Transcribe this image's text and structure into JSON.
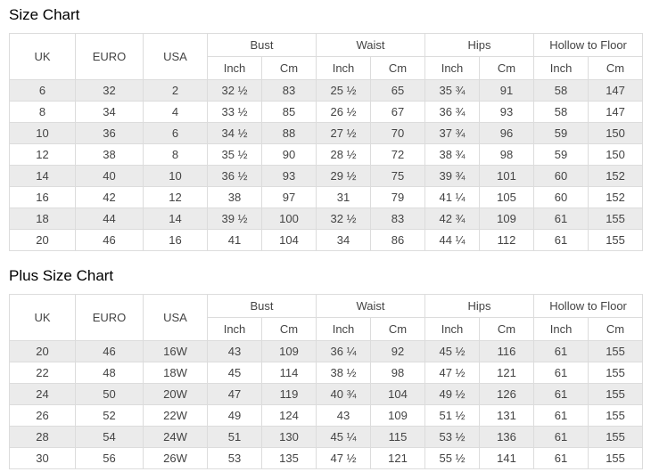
{
  "colors": {
    "stripe": "#ebebeb",
    "border": "#dcdcdc",
    "text": "#444444",
    "title": "#000000"
  },
  "tables": [
    {
      "title": "Size Chart",
      "headers": {
        "uk": "UK",
        "euro": "EURO",
        "usa": "USA"
      },
      "groups": [
        "Bust",
        "Waist",
        "Hips",
        "Hollow to Floor"
      ],
      "sub": [
        "Inch",
        "Cm"
      ],
      "rows": [
        [
          "6",
          "32",
          "2",
          "32 ½",
          "83",
          "25 ½",
          "65",
          "35 ¾",
          "91",
          "58",
          "147"
        ],
        [
          "8",
          "34",
          "4",
          "33 ½",
          "85",
          "26 ½",
          "67",
          "36 ¾",
          "93",
          "58",
          "147"
        ],
        [
          "10",
          "36",
          "6",
          "34 ½",
          "88",
          "27 ½",
          "70",
          "37 ¾",
          "96",
          "59",
          "150"
        ],
        [
          "12",
          "38",
          "8",
          "35 ½",
          "90",
          "28 ½",
          "72",
          "38 ¾",
          "98",
          "59",
          "150"
        ],
        [
          "14",
          "40",
          "10",
          "36 ½",
          "93",
          "29 ½",
          "75",
          "39 ¾",
          "101",
          "60",
          "152"
        ],
        [
          "16",
          "42",
          "12",
          "38",
          "97",
          "31",
          "79",
          "41 ¼",
          "105",
          "60",
          "152"
        ],
        [
          "18",
          "44",
          "14",
          "39 ½",
          "100",
          "32 ½",
          "83",
          "42 ¾",
          "109",
          "61",
          "155"
        ],
        [
          "20",
          "46",
          "16",
          "41",
          "104",
          "34",
          "86",
          "44 ¼",
          "112",
          "61",
          "155"
        ]
      ]
    },
    {
      "title": "Plus Size Chart",
      "headers": {
        "uk": "UK",
        "euro": "EURO",
        "usa": "USA"
      },
      "groups": [
        "Bust",
        "Waist",
        "Hips",
        "Hollow to Floor"
      ],
      "sub": [
        "Inch",
        "Cm"
      ],
      "rows": [
        [
          "20",
          "46",
          "16W",
          "43",
          "109",
          "36 ¼",
          "92",
          "45 ½",
          "116",
          "61",
          "155"
        ],
        [
          "22",
          "48",
          "18W",
          "45",
          "114",
          "38 ½",
          "98",
          "47 ½",
          "121",
          "61",
          "155"
        ],
        [
          "24",
          "50",
          "20W",
          "47",
          "119",
          "40 ¾",
          "104",
          "49 ½",
          "126",
          "61",
          "155"
        ],
        [
          "26",
          "52",
          "22W",
          "49",
          "124",
          "43",
          "109",
          "51 ½",
          "131",
          "61",
          "155"
        ],
        [
          "28",
          "54",
          "24W",
          "51",
          "130",
          "45 ¼",
          "115",
          "53 ½",
          "136",
          "61",
          "155"
        ],
        [
          "30",
          "56",
          "26W",
          "53",
          "135",
          "47 ½",
          "121",
          "55 ½",
          "141",
          "61",
          "155"
        ]
      ]
    }
  ]
}
